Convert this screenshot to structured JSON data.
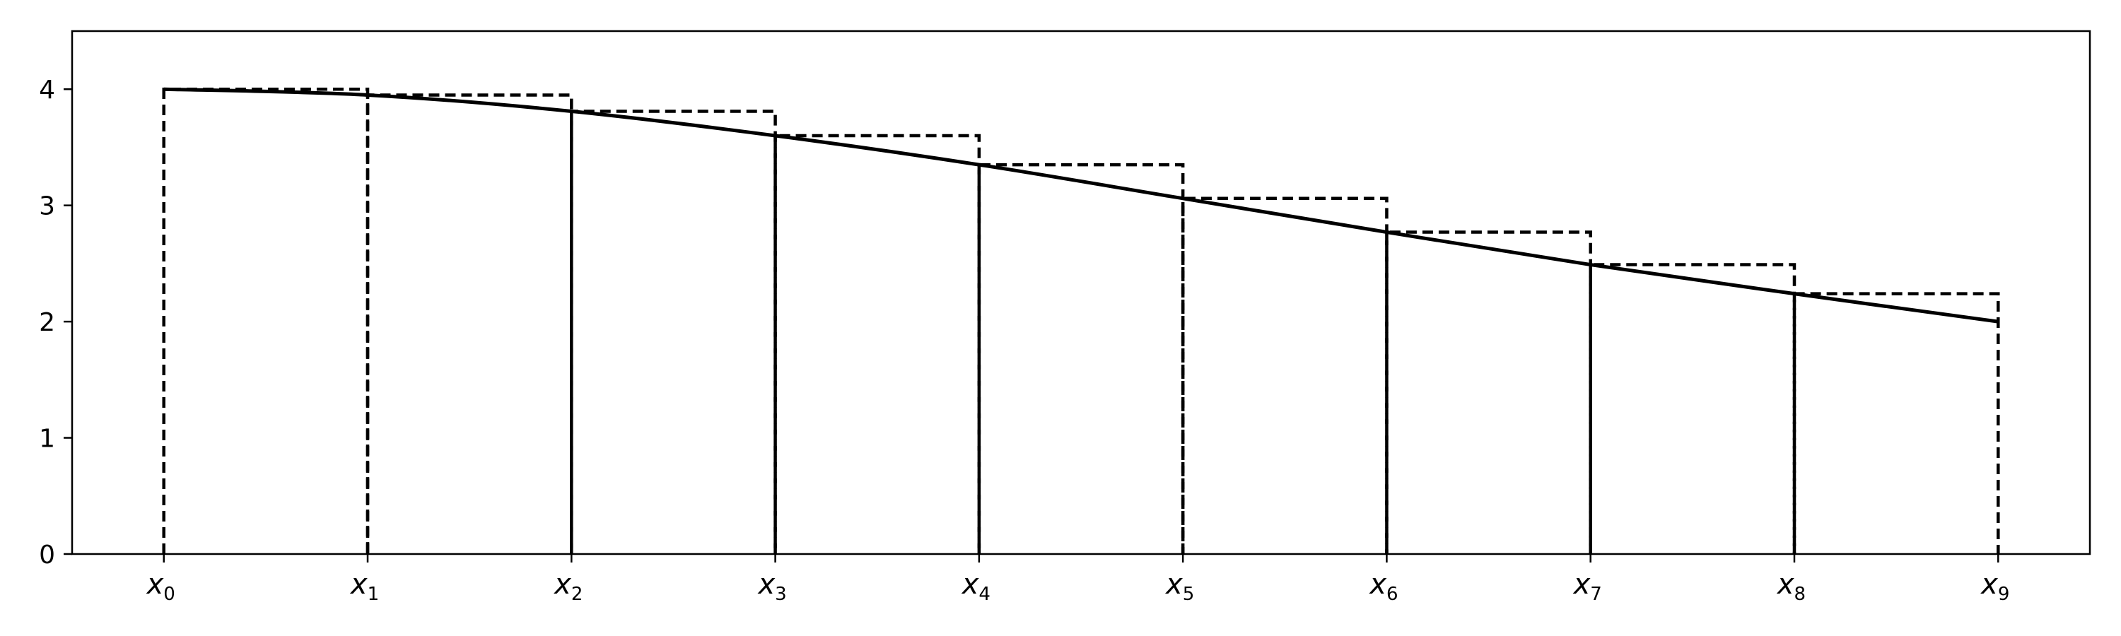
{
  "chart_data": {
    "type": "line",
    "description_type": "riemann_sum_left_rectangles",
    "x": [
      0,
      1,
      2,
      3,
      4,
      5,
      6,
      7,
      8,
      9
    ],
    "x_tick_labels": [
      {
        "base": "x",
        "sub": "0"
      },
      {
        "base": "x",
        "sub": "1"
      },
      {
        "base": "x",
        "sub": "2"
      },
      {
        "base": "x",
        "sub": "3"
      },
      {
        "base": "x",
        "sub": "4"
      },
      {
        "base": "x",
        "sub": "5"
      },
      {
        "base": "x",
        "sub": "6"
      },
      {
        "base": "x",
        "sub": "7"
      },
      {
        "base": "x",
        "sub": "8"
      },
      {
        "base": "x",
        "sub": "9"
      }
    ],
    "curve": {
      "style": "solid",
      "color": "#000000",
      "x": [
        0,
        1,
        2,
        3,
        4,
        5,
        6,
        7,
        8,
        9
      ],
      "y": [
        4.0,
        3.95,
        3.81,
        3.6,
        3.35,
        3.06,
        2.77,
        2.49,
        2.24,
        2.0
      ]
    },
    "rectangles": {
      "style": "dashed",
      "color": "#000000",
      "left_x": [
        0,
        1,
        2,
        3,
        4,
        5,
        6,
        7,
        8
      ],
      "heights": [
        4.0,
        3.95,
        3.81,
        3.6,
        3.35,
        3.06,
        2.77,
        2.49,
        2.24
      ]
    },
    "xlim": [
      -0.45,
      9.45
    ],
    "ylim": [
      0,
      4.5
    ],
    "y_ticks": [
      0,
      1,
      2,
      3,
      4
    ],
    "y_tick_labels": [
      "0",
      "1",
      "2",
      "3",
      "4"
    ],
    "grid": false,
    "title": "",
    "xlabel": "",
    "ylabel": ""
  }
}
